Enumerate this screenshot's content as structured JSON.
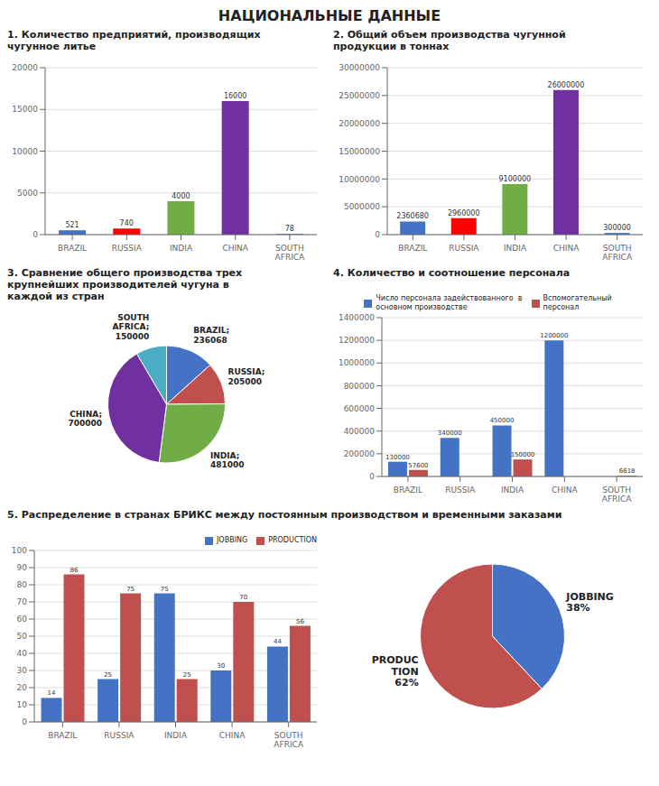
{
  "title": "НАЦИОНАЛЬНЫЕ ДАННЫЕ",
  "chart_data": [
    {
      "type": "bar",
      "title": "1. Количество предприятий, производящих\nчугунное литье",
      "categories": [
        "BRAZIL",
        "RUSSIA",
        "INDIA",
        "CHINA",
        "SOUTH\nAFRICA"
      ],
      "values": [
        521,
        740,
        4000,
        16000,
        78
      ],
      "colors": [
        "#4472C4",
        "#FF0000",
        "#70AD47",
        "#7030A0",
        "#4472C4"
      ],
      "ylim": [
        0,
        20000
      ],
      "yticks": [
        0,
        5000,
        10000,
        15000,
        20000
      ],
      "grid": true,
      "data_labels": true
    },
    {
      "type": "bar",
      "title": "2. Общий объем производства чугунной\nпродукции в тоннах",
      "categories": [
        "BRAZIL",
        "RUSSIA",
        "INDIA",
        "CHINA",
        "SOUTH\nAFRICA"
      ],
      "values": [
        2360680,
        2960000,
        9100000,
        26000000,
        300000
      ],
      "colors": [
        "#4472C4",
        "#FF0000",
        "#70AD47",
        "#7030A0",
        "#4472C4"
      ],
      "ylim": [
        0,
        30000000
      ],
      "yticks": [
        0,
        5000000,
        10000000,
        15000000,
        20000000,
        25000000,
        30000000
      ],
      "grid": true,
      "data_labels": true
    },
    {
      "type": "pie",
      "title": "3. Сравнение общего производства трех\nкрупнейших производителей чугуна в\nкаждой из стран",
      "categories": [
        "BRAZIL;\n236068",
        "RUSSIA;\n205000",
        "INDIA;\n481000",
        "CHINA;\n700000",
        "SOUTH\nAFRICA;\n150000"
      ],
      "values": [
        236068,
        205000,
        481000,
        700000,
        150000
      ],
      "colors": [
        "#4472C4",
        "#C0504D",
        "#70AD47",
        "#7030A0",
        "#4BACC6"
      ]
    },
    {
      "type": "bar",
      "title": "4. Количество и соотношение персонала",
      "categories": [
        "BRAZIL",
        "RUSSIA",
        "INDIA",
        "CHINA",
        "SOUTH\nAFRICA"
      ],
      "series": [
        {
          "name": "Число персонала задействованного  в\nосновном производстве",
          "color": "#4472C4",
          "values": [
            130000,
            340000,
            450000,
            1200000,
            0
          ],
          "value_labels": [
            "130000",
            "340000",
            "450000",
            "1200000",
            null
          ]
        },
        {
          "name": "Вспомогательный\nперсонал",
          "color": "#C0504D",
          "values": [
            57600,
            0,
            150000,
            0,
            6618
          ],
          "value_labels": [
            "57600",
            null,
            "150000",
            null,
            "6618"
          ]
        }
      ],
      "ylim": [
        0,
        1400000
      ],
      "yticks": [
        0,
        200000,
        400000,
        600000,
        800000,
        1000000,
        1200000,
        1400000
      ],
      "grid": true,
      "data_labels": true,
      "legend": "top"
    },
    {
      "type": "bar",
      "title": "5. Распределение в странах БРИКС между постоянным производством и временными заказами",
      "categories": [
        "BRAZIL",
        "RUSSIA",
        "INDIA",
        "CHINA",
        "SOUTH\nAFRICA"
      ],
      "series": [
        {
          "name": "JOBBING",
          "color": "#4472C4",
          "values": [
            14,
            25,
            75,
            30,
            44
          ]
        },
        {
          "name": "PRODUCTION",
          "color": "#C0504D",
          "values": [
            86,
            75,
            25,
            70,
            56
          ]
        }
      ],
      "ylim": [
        0,
        100
      ],
      "yticks": [
        0,
        10,
        20,
        30,
        40,
        50,
        60,
        70,
        80,
        90,
        100
      ],
      "grid": true,
      "data_labels": true,
      "legend": "upper right"
    },
    {
      "type": "pie",
      "categories": [
        "JOBBING\n38%",
        "PRODUC\nTION\n62%"
      ],
      "values": [
        38,
        62
      ],
      "colors": [
        "#4472C4",
        "#C0504D"
      ]
    }
  ]
}
